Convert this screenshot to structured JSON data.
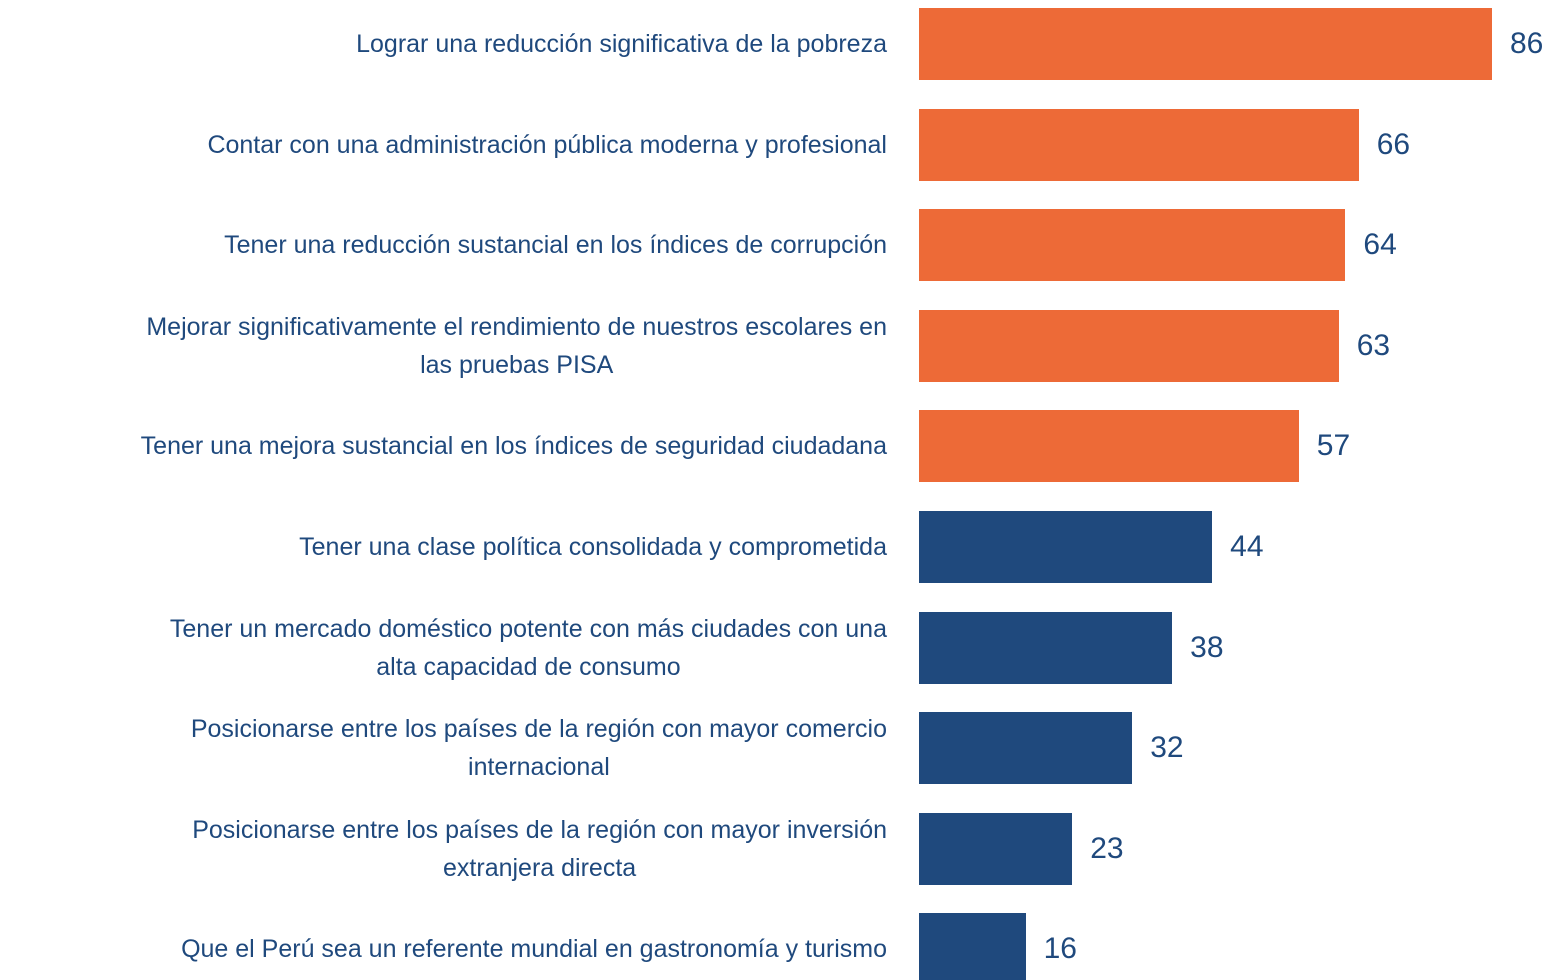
{
  "chart_data": {
    "type": "bar",
    "orientation": "horizontal",
    "categories": [
      "Lograr una reducción significativa de la pobreza",
      "Contar con una administración pública moderna y profesional",
      "Tener una reducción sustancial en los índices de corrupción",
      "Mejorar significativamente el rendimiento de nuestros escolares en\nlas pruebas PISA",
      "Tener una mejora sustancial en los índices de seguridad ciudadana",
      "Tener una clase política consolidada y comprometida",
      "Tener un mercado doméstico potente con más ciudades con una\nalta capacidad de consumo",
      "Posicionarse entre los países de la región con mayor comercio\ninternacional",
      "Posicionarse entre los países de la región con mayor inversión\nextranjera directa",
      "Que el Perú sea un referente mundial en gastronomía y turismo"
    ],
    "values": [
      86,
      66,
      64,
      63,
      57,
      44,
      38,
      32,
      23,
      16
    ],
    "colors": [
      "#ed6a37",
      "#ed6a37",
      "#ed6a37",
      "#ed6a37",
      "#ed6a37",
      "#1f497d",
      "#1f497d",
      "#1f497d",
      "#1f497d",
      "#1f497d"
    ]
  }
}
